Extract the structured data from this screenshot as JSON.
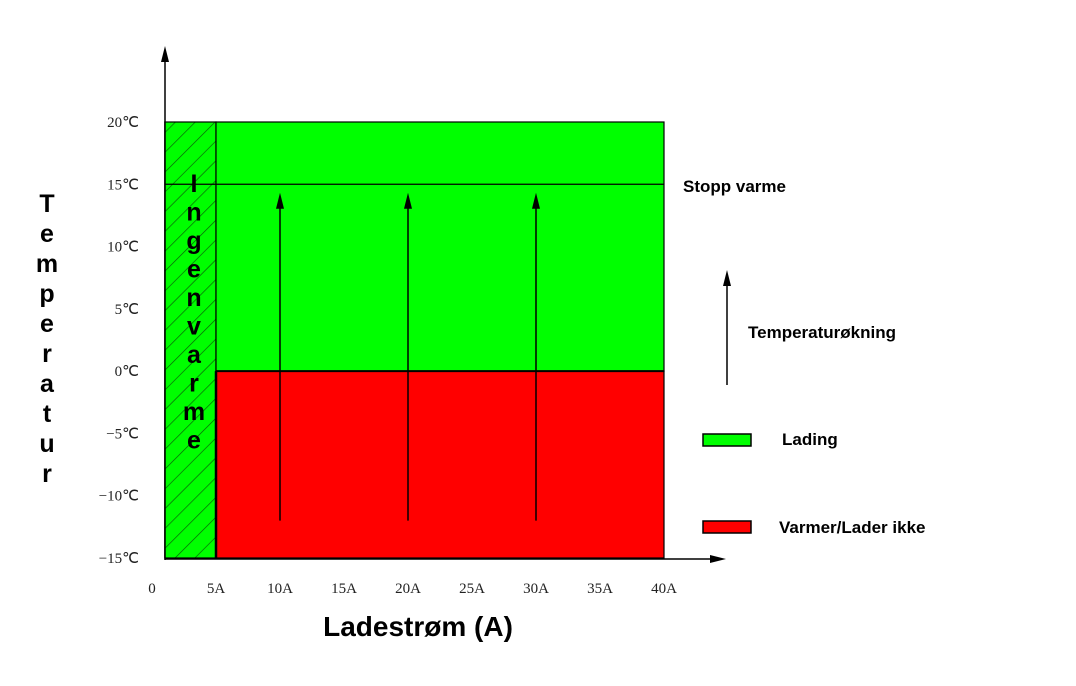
{
  "chart_data": {
    "type": "area",
    "xlabel": "Ladestrøm (A)",
    "ylabel": "Temperatur",
    "x_ticks": [
      {
        "value": 0,
        "label": "0"
      },
      {
        "value": 5,
        "label": "5A"
      },
      {
        "value": 10,
        "label": "10A"
      },
      {
        "value": 15,
        "label": "15A"
      },
      {
        "value": 20,
        "label": "20A"
      },
      {
        "value": 25,
        "label": "25A"
      },
      {
        "value": 30,
        "label": "30A"
      },
      {
        "value": 35,
        "label": "35A"
      },
      {
        "value": 40,
        "label": "40A"
      }
    ],
    "y_ticks": [
      {
        "value": -15,
        "label": "−15℃"
      },
      {
        "value": -10,
        "label": "−10℃"
      },
      {
        "value": -5,
        "label": "−5℃"
      },
      {
        "value": 0,
        "label": "0℃"
      },
      {
        "value": 5,
        "label": "5℃"
      },
      {
        "value": 10,
        "label": "10℃"
      },
      {
        "value": 15,
        "label": "15℃"
      },
      {
        "value": 20,
        "label": "20℃"
      }
    ],
    "xlim": [
      0,
      40
    ],
    "ylim": [
      -15,
      20
    ],
    "regions": [
      {
        "name": "no-heat",
        "x": [
          1,
          5
        ],
        "y": [
          -15,
          20
        ],
        "fill": "#00ff00",
        "hatched": true
      },
      {
        "name": "charging",
        "x": [
          5,
          40
        ],
        "y": [
          0,
          20
        ],
        "fill": "#00ff00"
      },
      {
        "name": "heating",
        "x": [
          5,
          40
        ],
        "y": [
          -15,
          0
        ],
        "fill": "#ff0000"
      }
    ],
    "hatch_label": "Ingen varme",
    "stop_line": {
      "y": 15,
      "x": [
        1,
        40
      ],
      "label": "Stopp varme"
    },
    "arrows": [
      {
        "x": 10,
        "y_from": -12,
        "y_to": 14
      },
      {
        "x": 20,
        "y_from": -12,
        "y_to": 14
      },
      {
        "x": 30,
        "y_from": -12,
        "y_to": 14
      }
    ]
  },
  "annotations": {
    "temperature_rise": "Temperaturøkning"
  },
  "legend": {
    "placement": "right",
    "items": [
      {
        "label": "Lading",
        "color": "#00ff00"
      },
      {
        "label": "Varmer/Lader ikke",
        "color": "#ff0000"
      }
    ]
  }
}
